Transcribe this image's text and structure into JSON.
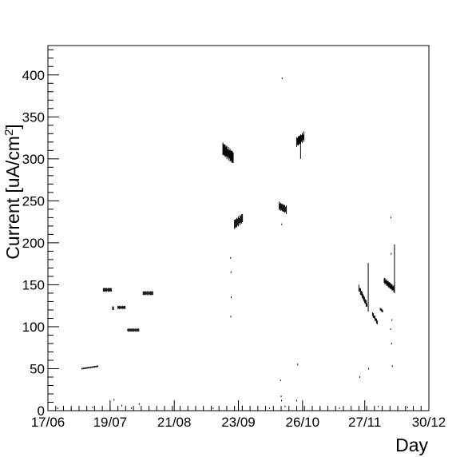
{
  "chart_data": {
    "type": "scatter",
    "title": "",
    "xlabel": "Day",
    "ylabel": "Current [uA/cm",
    "ylabel_superscript": "2",
    "ylabel_suffix": "]",
    "ylim": [
      0,
      435
    ],
    "xlim": [
      0,
      196
    ],
    "grid": false,
    "legend": "none",
    "x_ticks": [
      {
        "day": 0,
        "label": "17/06"
      },
      {
        "day": 32,
        "label": "19/07"
      },
      {
        "day": 65,
        "label": "21/08"
      },
      {
        "day": 98,
        "label": "23/09"
      },
      {
        "day": 131,
        "label": "26/10"
      },
      {
        "day": 163,
        "label": "27/11"
      },
      {
        "day": 196,
        "label": "30/12"
      }
    ],
    "y_ticks": [
      0,
      50,
      100,
      150,
      200,
      250,
      300,
      350,
      400
    ],
    "series": [
      {
        "color": "#000000",
        "clusters": [
          {
            "x": [
              17.5,
              26
            ],
            "y": [
              50,
              53
            ],
            "spread": 2
          },
          {
            "x": [
              28.5,
              33
            ],
            "y": [
              144,
              144
            ],
            "spread": 5
          },
          {
            "x": [
              33.3,
              34
            ],
            "y": [
              122,
              122
            ],
            "spread": 5
          },
          {
            "x": [
              36,
              40
            ],
            "y": [
              123,
              123
            ],
            "spread": 4
          },
          {
            "x": [
              41,
              47
            ],
            "y": [
              96,
              96
            ],
            "spread": 4
          },
          {
            "x": [
              49,
              54
            ],
            "y": [
              140,
              140
            ],
            "spread": 5
          },
          {
            "x": [
              90,
              95.5
            ],
            "y": [
              312,
              301
            ],
            "spread": 16
          },
          {
            "x": [
              96,
              100.5
            ],
            "y": [
              222,
              230
            ],
            "spread": 12
          },
          {
            "x": [
              119,
              123
            ],
            "y": [
              244,
              239
            ],
            "spread": 10
          },
          {
            "x": [
              128,
              132
            ],
            "y": [
              320,
              327
            ],
            "spread": 12
          },
          {
            "x": [
              160,
              164.5
            ],
            "y": [
              146,
              124
            ],
            "spread": 8
          },
          {
            "x": [
              167,
              169.5
            ],
            "y": [
              115,
              105
            ],
            "spread": 6
          },
          {
            "x": [
              171,
              172.5
            ],
            "y": [
              121,
              118
            ],
            "spread": 4
          },
          {
            "x": [
              173,
              178
            ],
            "y": [
              155,
              145
            ],
            "spread": 8
          }
        ],
        "spikes": [
          {
            "x": 164.8,
            "y1": 118,
            "y2": 176
          },
          {
            "x": 178.3,
            "y1": 140,
            "y2": 198
          },
          {
            "x": 130.0,
            "y1": 300,
            "y2": 320
          }
        ],
        "points": [
          [
            94,
            182
          ],
          [
            94.2,
            165
          ],
          [
            94.3,
            135
          ],
          [
            94.1,
            112
          ],
          [
            120.5,
            396
          ],
          [
            120.3,
            222
          ],
          [
            119.7,
            36
          ],
          [
            120,
            17
          ],
          [
            120.2,
            12
          ],
          [
            122,
            5
          ],
          [
            128,
            12
          ],
          [
            128.5,
            55
          ],
          [
            176.5,
            230
          ],
          [
            176.6,
            187
          ],
          [
            177,
            108
          ],
          [
            176.3,
            97
          ],
          [
            176.8,
            80
          ],
          [
            177.2,
            53
          ],
          [
            165,
            50
          ],
          [
            160.5,
            40
          ],
          [
            5,
            3
          ],
          [
            12,
            2
          ],
          [
            23,
            4
          ],
          [
            34,
            13
          ],
          [
            38,
            6
          ],
          [
            43,
            3
          ],
          [
            47,
            8
          ],
          [
            60,
            2
          ],
          [
            85,
            3
          ],
          [
            100,
            5
          ],
          [
            114,
            3
          ],
          [
            140,
            2
          ],
          [
            150,
            3
          ],
          [
            170,
            5
          ],
          [
            185,
            4
          ]
        ]
      }
    ]
  }
}
